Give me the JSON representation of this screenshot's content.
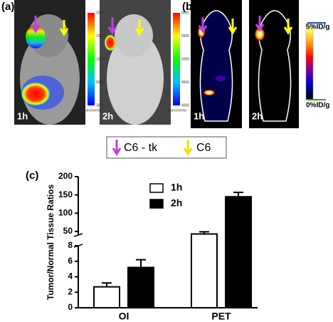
{
  "panel_a": {
    "label": "(a)",
    "images": [
      {
        "time": "1h",
        "colorbar_ticks": [
          "20000",
          "15000",
          "10000",
          "5000"
        ],
        "colorbar_min": "3000",
        "colorbar_unit": "p/sec/cm²/sr"
      },
      {
        "time": "2h",
        "colorbar_ticks": [
          "6000",
          "5500",
          "5000",
          "4500"
        ],
        "colorbar_min": "4000",
        "colorbar_unit": "p/sec/cm²/sr"
      }
    ]
  },
  "panel_b": {
    "label": "(b)",
    "times": [
      "1h",
      "2h"
    ],
    "scale_max": "5%ID/g",
    "scale_min": "0%ID/g"
  },
  "legend": [
    "C6 - tk",
    "C6"
  ],
  "chart_data": {
    "type": "bar",
    "label": "(c)",
    "ylabel": "Tumor/Normal Tissue Ratios",
    "categories": [
      "OI",
      "PET"
    ],
    "series": [
      {
        "name": "1h",
        "color": "#ffffff",
        "values": [
          2.7,
          43
        ],
        "errors": [
          0.5,
          6
        ]
      },
      {
        "name": "2h",
        "color": "#000000",
        "values": [
          5.2,
          145
        ],
        "errors": [
          1.0,
          12
        ]
      }
    ],
    "segments": [
      {
        "ylim": [
          0,
          8
        ],
        "yticks": [
          0,
          2,
          4,
          6,
          8
        ]
      },
      {
        "ylim": [
          40,
          200
        ],
        "yticks": [
          50,
          100,
          150,
          200
        ]
      }
    ],
    "axis_break": true
  }
}
